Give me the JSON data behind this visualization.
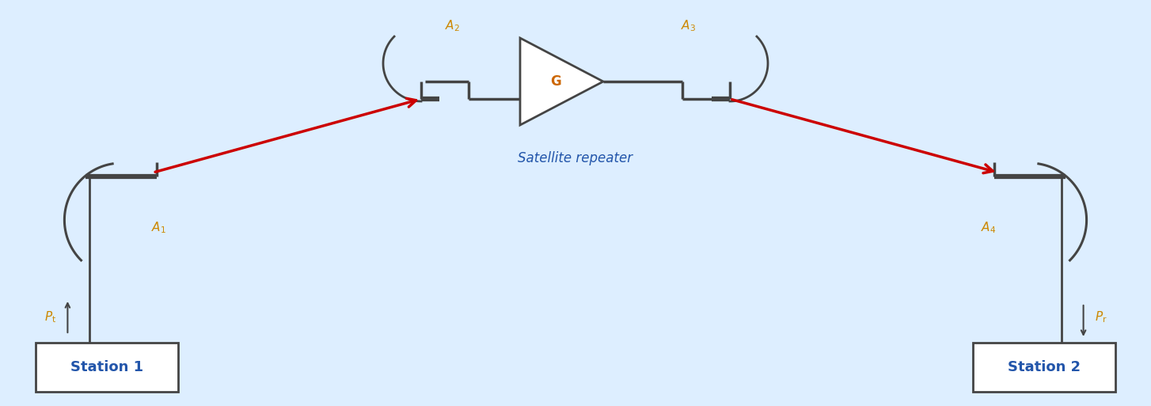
{
  "bg_color": "#ddeeff",
  "line_color": "#444444",
  "red_arrow_color": "#cc0000",
  "station_box_color": "#ffffff",
  "station_text_color": "#2255aa",
  "label_color": "#cc8800",
  "g_color": "#cc6600",
  "satellite_label": "Satellite repeater",
  "station1_label": "Station 1",
  "station2_label": "Station 2",
  "G": "G"
}
